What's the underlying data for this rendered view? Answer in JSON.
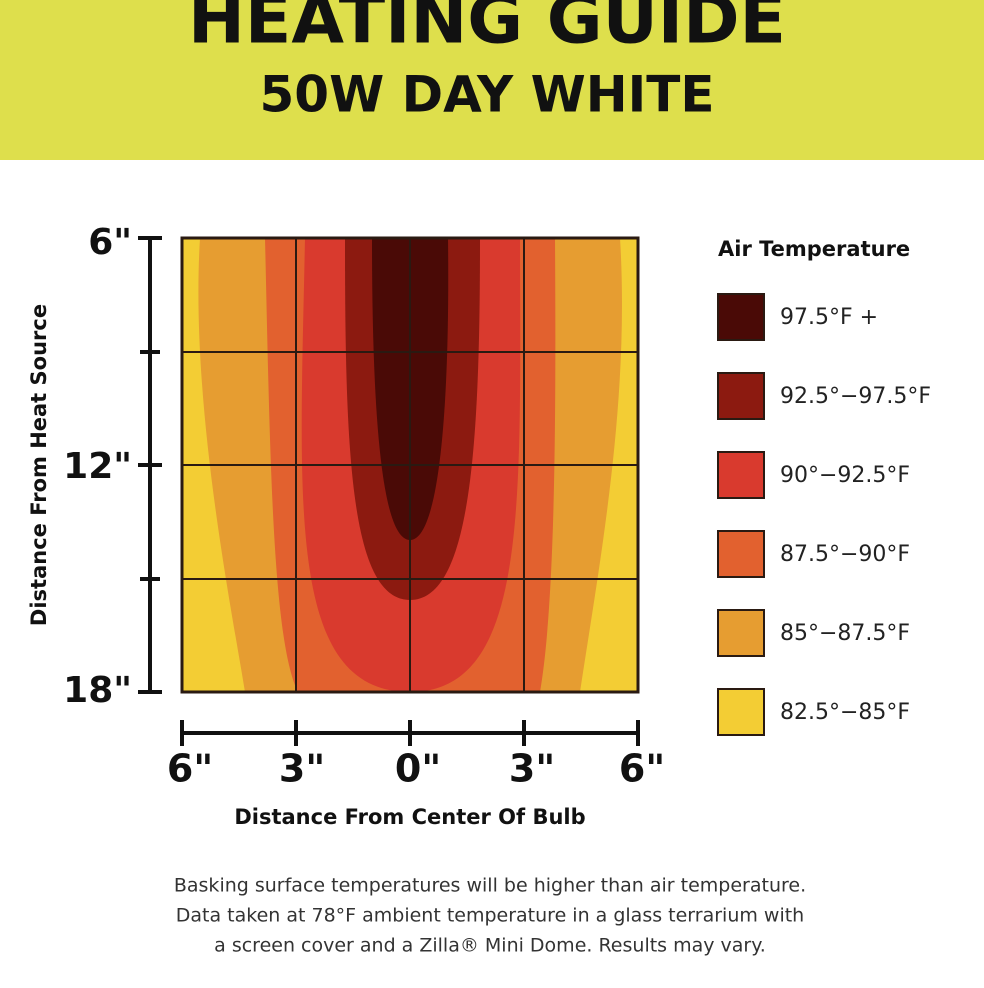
{
  "header": {
    "title": "HEATING GUIDE",
    "subtitle": "50W DAY WHITE"
  },
  "y_axis": {
    "label": "Distance From Heat Source",
    "ticks": [
      "6\"",
      "12\"",
      "18\""
    ]
  },
  "x_axis": {
    "label": "Distance From Center Of Bulb",
    "ticks": [
      "6\"",
      "3\"",
      "0\"",
      "3\"",
      "6\""
    ]
  },
  "legend": {
    "title": "Air Temperature",
    "items": [
      {
        "label": "97.5°F +",
        "color": "#4a0a06"
      },
      {
        "label": "92.5°−97.5°F",
        "color": "#8c1a10"
      },
      {
        "label": "90°−92.5°F",
        "color": "#d93a2e"
      },
      {
        "label": "87.5°−90°F",
        "color": "#e2612f"
      },
      {
        "label": "85°−87.5°F",
        "color": "#e69d31"
      },
      {
        "label": "82.5°−85°F",
        "color": "#f3cd34"
      }
    ]
  },
  "footnote": [
    "Basking surface temperatures will be higher than air temperature.",
    "Data taken at 78°F ambient temperature in a glass terrarium with",
    "a screen cover and a Zilla® Mini Dome. Results may vary."
  ]
}
